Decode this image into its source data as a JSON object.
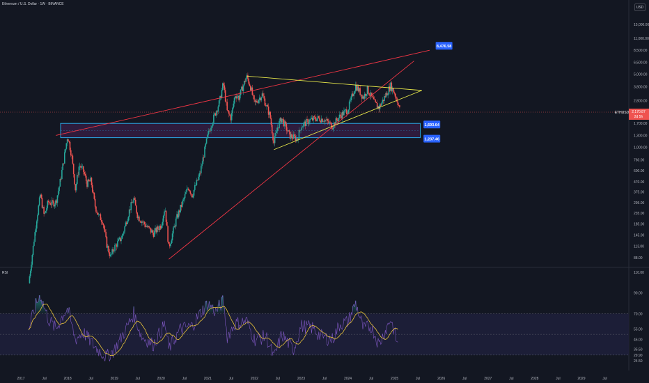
{
  "header": {
    "symbol_title": "Ethereum / U.S. Dollar · 1W · BINANCE",
    "currency": "USD"
  },
  "rsi_panel": {
    "title": "RSI"
  },
  "colors": {
    "background": "#131722",
    "up_candle": "#26a69a",
    "down_candle": "#ef5350",
    "trend_line": "#f23645",
    "triangle_line": "#e8e84a",
    "zone_border": "#29b6f6",
    "zone_fill": "#3d1f4d",
    "label_bg": "#2962ff",
    "rsi_line": "#7e57c2",
    "rsi_ma": "#e8c33a",
    "rsi_band": "#1e1f3a"
  },
  "chart_data": [
    {
      "type": "candlestick",
      "title": "Ethereum / U.S. Dollar · 1W · BINANCE",
      "scale": "log",
      "y_ticks": [
        "15,000.00",
        "11,000.00",
        "8,500.00",
        "6,500.00",
        "5,000.00",
        "3,800.00",
        "2,800.00",
        "1,700.00",
        "1,300.00",
        "1,000.00",
        "760.00",
        "600.00",
        "470.00",
        "375.00",
        "295.00",
        "235.00",
        "185.00",
        "145.00",
        "113.00",
        "88.00"
      ],
      "x_ticks": [
        "2017",
        "Jul",
        "2018",
        "Jul",
        "2019",
        "Jul",
        "2020",
        "Jul",
        "2021",
        "Jul",
        "2022",
        "Jul",
        "2023",
        "Jul",
        "2024",
        "Jul",
        "2025",
        "Jul",
        "2026",
        "Jul",
        "2027",
        "Jul",
        "2028",
        "Jul",
        "2029",
        "Jul"
      ],
      "price_series": [
        [
          "2017-03",
          50
        ],
        [
          "2017-05",
          200
        ],
        [
          "2017-06",
          350
        ],
        [
          "2017-07",
          220
        ],
        [
          "2017-08",
          300
        ],
        [
          "2017-09",
          290
        ],
        [
          "2017-10",
          300
        ],
        [
          "2017-11",
          450
        ],
        [
          "2017-12",
          750
        ],
        [
          "2018-01",
          1300
        ],
        [
          "2018-02",
          850
        ],
        [
          "2018-03",
          400
        ],
        [
          "2018-04",
          680
        ],
        [
          "2018-05",
          600
        ],
        [
          "2018-06",
          450
        ],
        [
          "2018-07",
          480
        ],
        [
          "2018-08",
          280
        ],
        [
          "2018-09",
          220
        ],
        [
          "2018-10",
          200
        ],
        [
          "2018-11",
          120
        ],
        [
          "2018-12",
          90
        ],
        [
          "2019-01",
          110
        ],
        [
          "2019-03",
          140
        ],
        [
          "2019-05",
          260
        ],
        [
          "2019-06",
          320
        ],
        [
          "2019-07",
          220
        ],
        [
          "2019-09",
          180
        ],
        [
          "2019-11",
          150
        ],
        [
          "2020-01",
          180
        ],
        [
          "2020-02",
          270
        ],
        [
          "2020-03",
          110
        ],
        [
          "2020-05",
          210
        ],
        [
          "2020-07",
          330
        ],
        [
          "2020-08",
          420
        ],
        [
          "2020-09",
          350
        ],
        [
          "2020-11",
          560
        ],
        [
          "2021-01",
          1300
        ],
        [
          "2021-02",
          1700
        ],
        [
          "2021-04",
          2700
        ],
        [
          "2021-05",
          4100
        ],
        [
          "2021-06",
          2200
        ],
        [
          "2021-07",
          1900
        ],
        [
          "2021-08",
          3200
        ],
        [
          "2021-09",
          3000
        ],
        [
          "2021-11",
          4800
        ],
        [
          "2021-12",
          3800
        ],
        [
          "2022-01",
          2600
        ],
        [
          "2022-03",
          3200
        ],
        [
          "2022-05",
          2000
        ],
        [
          "2022-06",
          1100
        ],
        [
          "2022-07",
          1600
        ],
        [
          "2022-08",
          1900
        ],
        [
          "2022-10",
          1300
        ],
        [
          "2022-12",
          1200
        ],
        [
          "2023-01",
          1600
        ],
        [
          "2023-03",
          1800
        ],
        [
          "2023-05",
          1900
        ],
        [
          "2023-07",
          1850
        ],
        [
          "2023-09",
          1600
        ],
        [
          "2023-11",
          2000
        ],
        [
          "2024-01",
          2300
        ],
        [
          "2024-03",
          3900
        ],
        [
          "2024-05",
          3000
        ],
        [
          "2024-06",
          3600
        ],
        [
          "2024-08",
          2600
        ],
        [
          "2024-09",
          2400
        ],
        [
          "2024-11",
          3300
        ],
        [
          "2024-12",
          3900
        ],
        [
          "2025-01",
          3300
        ],
        [
          "2025-02",
          2600
        ],
        [
          "2025-02-15",
          2180
        ]
      ],
      "last_price": "2,170.87",
      "price_tag_symbol": "ETHUSD",
      "price_tag_countdown": "2d 5h",
      "zones": [
        {
          "top": 1693.64,
          "bottom": 1237.46,
          "label_top": "1,693.64",
          "label_bottom": "1,237.46"
        }
      ],
      "target_label": "8,476.58",
      "trendlines": [
        {
          "name": "upper-channel",
          "from": [
            "2017-10",
            1300
          ],
          "to": [
            "2025-10",
            8476.58
          ]
        },
        {
          "name": "lower-support",
          "from": [
            "2020-03",
            85
          ],
          "to": [
            "2025-06",
            6700
          ]
        },
        {
          "name": "triangle-top",
          "from": [
            "2021-11",
            4800
          ],
          "to": [
            "2025-08",
            3500
          ]
        },
        {
          "name": "triangle-bottom",
          "from": [
            "2022-06",
            950
          ],
          "to": [
            "2025-08",
            3500
          ]
        }
      ]
    },
    {
      "type": "line",
      "title": "RSI",
      "y_ticks": [
        "110.00",
        "90.00",
        "70.00",
        "55.00",
        "45.00",
        "35.50",
        "29.90",
        "24.50"
      ],
      "band": [
        30,
        70
      ],
      "midline": 50,
      "rsi_series": [
        [
          "2017-03",
          55
        ],
        [
          "2017-05",
          80
        ],
        [
          "2017-06",
          88
        ],
        [
          "2017-08",
          65
        ],
        [
          "2017-10",
          55
        ],
        [
          "2017-12",
          70
        ],
        [
          "2018-01",
          75
        ],
        [
          "2018-03",
          45
        ],
        [
          "2018-05",
          52
        ],
        [
          "2018-08",
          38
        ],
        [
          "2018-11",
          28
        ],
        [
          "2019-01",
          35
        ],
        [
          "2019-04",
          55
        ],
        [
          "2019-06",
          70
        ],
        [
          "2019-08",
          48
        ],
        [
          "2019-11",
          40
        ],
        [
          "2020-02",
          60
        ],
        [
          "2020-03",
          36
        ],
        [
          "2020-06",
          55
        ],
        [
          "2020-09",
          58
        ],
        [
          "2020-11",
          70
        ],
        [
          "2021-01",
          80
        ],
        [
          "2021-03",
          72
        ],
        [
          "2021-05",
          82
        ],
        [
          "2021-06",
          48
        ],
        [
          "2021-08",
          60
        ],
        [
          "2021-11",
          63
        ],
        [
          "2022-01",
          45
        ],
        [
          "2022-04",
          48
        ],
        [
          "2022-06",
          27
        ],
        [
          "2022-08",
          50
        ],
        [
          "2022-11",
          35
        ],
        [
          "2023-01",
          58
        ],
        [
          "2023-04",
          56
        ],
        [
          "2023-06",
          48
        ],
        [
          "2023-09",
          45
        ],
        [
          "2023-11",
          60
        ],
        [
          "2024-01",
          62
        ],
        [
          "2024-03",
          80
        ],
        [
          "2024-05",
          55
        ],
        [
          "2024-07",
          58
        ],
        [
          "2024-09",
          40
        ],
        [
          "2024-12",
          65
        ],
        [
          "2025-01",
          52
        ],
        [
          "2025-02",
          37
        ]
      ]
    }
  ]
}
